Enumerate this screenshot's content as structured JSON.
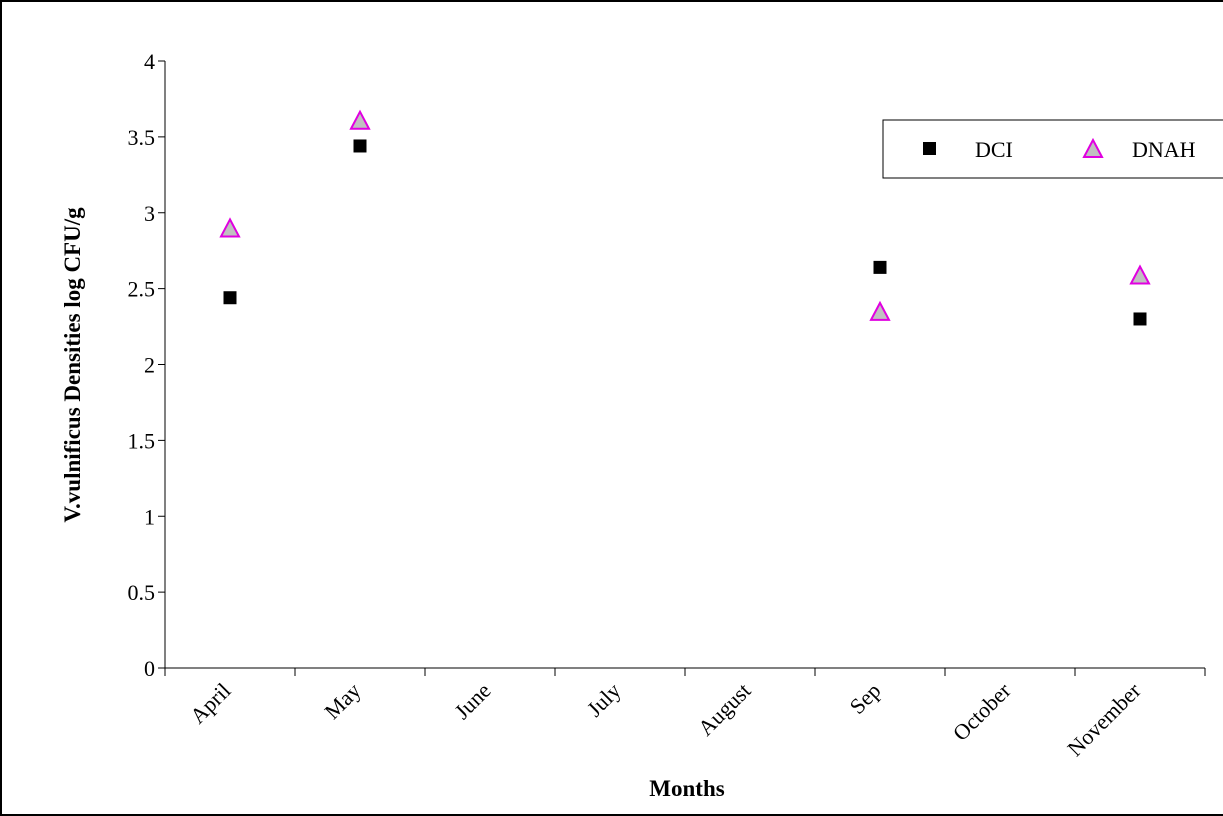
{
  "chart_data": {
    "type": "scatter",
    "title": "",
    "xlabel": "Months",
    "ylabel": "V.vulnificus Densities log CFU/g",
    "categories": [
      "April",
      "May",
      "June",
      "July",
      "August",
      "Sep",
      "October",
      "November"
    ],
    "ylim": [
      0,
      4
    ],
    "yticks": [
      "0",
      "0.5",
      "1",
      "1.5",
      "2",
      "2.5",
      "3",
      "3.5",
      "4"
    ],
    "grid": false,
    "legend_position": "top-right",
    "series": [
      {
        "name": "DCI",
        "marker": "square",
        "color": "#000000",
        "values": [
          2.44,
          3.44,
          null,
          null,
          null,
          2.64,
          null,
          2.3
        ]
      },
      {
        "name": "DNAH",
        "marker": "triangle",
        "color": "#e000e0",
        "fill": "#c0c0c0",
        "values": [
          2.89,
          3.6,
          null,
          null,
          null,
          2.34,
          null,
          2.58
        ]
      }
    ]
  }
}
